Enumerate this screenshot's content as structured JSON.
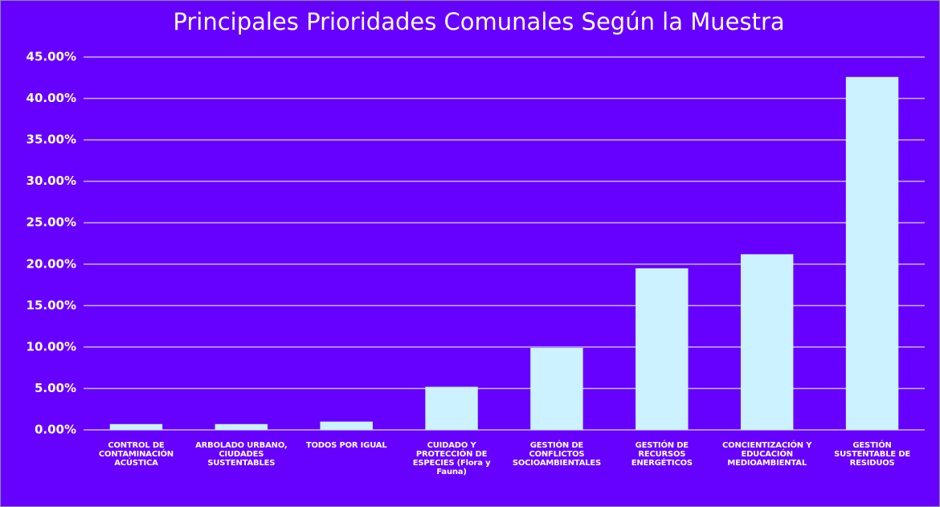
{
  "chart_data": {
    "type": "bar",
    "title": "Principales Prioridades Comunales Según la Muestra",
    "categories": [
      "CONTROL DE CONTAMINACIÓN ACÚSTICA",
      "ARBOLADO URBANO, CIUDADES SUSTENTABLES",
      "TODOS POR IGUAL",
      "CUIDADO Y PROTECCIÓN DE ESPECIES (Flora y Fauna)",
      "GESTIÓN DE CONFLICTOS SOCIOAMBIENTALES",
      "GESTIÓN DE RECURSOS ENERGÉTICOS",
      "CONCIENTIZACIÓN Y EDUCACIÓN MEDIOAMBIENTAL",
      "GESTIÓN SUSTENTABLE DE RESIDUOS"
    ],
    "values": [
      0.7,
      0.7,
      1.0,
      5.2,
      9.9,
      19.5,
      21.2,
      42.6
    ],
    "color": "#ccf2ff",
    "ylim": [
      0,
      45
    ],
    "yticks": [
      {
        "value": 0,
        "label": "0.00%"
      },
      {
        "value": 5,
        "label": "5.00%"
      },
      {
        "value": 10,
        "label": "10.00%"
      },
      {
        "value": 15,
        "label": "15.00%"
      },
      {
        "value": 20,
        "label": "20.00%"
      },
      {
        "value": 25,
        "label": "25.00%"
      },
      {
        "value": 30,
        "label": "30.00%"
      },
      {
        "value": 35,
        "label": "35.00%"
      },
      {
        "value": 40,
        "label": "40.00%"
      },
      {
        "value": 45,
        "label": "45.00%"
      }
    ],
    "grid": true
  }
}
